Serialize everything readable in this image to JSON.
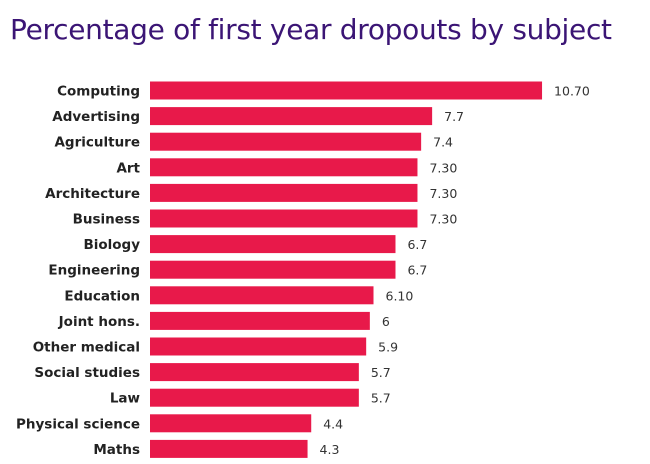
{
  "colors": {
    "title": "#3b1575",
    "bar": "#e8194a",
    "background": "#ffffff"
  },
  "chart_data": {
    "type": "bar",
    "orientation": "horizontal",
    "title": "Percentage of first year dropouts by subject",
    "xlabel": "",
    "ylabel": "",
    "xlim": [
      0,
      12
    ],
    "grid": false,
    "legend": "none",
    "categories": [
      "Computing",
      "Advertising",
      "Agriculture",
      "Art",
      "Architecture",
      "Business",
      "Biology",
      "Engineering",
      "Education",
      "Joint hons.",
      "Other medical",
      "Social studies",
      "Law",
      "Physical science",
      "Maths"
    ],
    "values": [
      10.7,
      7.7,
      7.4,
      7.3,
      7.3,
      7.3,
      6.7,
      6.7,
      6.1,
      6,
      5.9,
      5.7,
      5.7,
      4.4,
      4.3
    ],
    "value_labels": [
      "10.70",
      "7.7",
      "7.4",
      "7.30",
      "7.30",
      "7.30",
      "6.7",
      "6.7",
      "6.10",
      "6",
      "5.9",
      "5.7",
      "5.7",
      "4.4",
      "4.3"
    ]
  }
}
